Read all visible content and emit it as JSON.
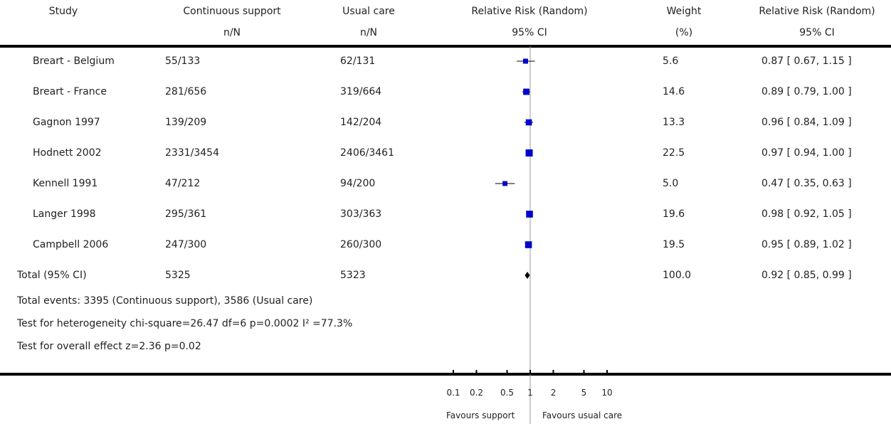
{
  "headers": {
    "study": "Study",
    "group1": "Continuous support",
    "group1_sub": "n/N",
    "group2": "Usual care",
    "group2_sub": "n/N",
    "effect": "Relative Risk (Random)",
    "effect_sub": "95% CI",
    "weight": "Weight",
    "weight_sub": "(%)",
    "ci": "Relative Risk (Random)",
    "ci_sub": "95% CI"
  },
  "total": {
    "label": "Total (95% CI)",
    "group1": "5325",
    "group2": "5323",
    "weight": "100.0",
    "ci_text": "0.92 [ 0.85, 0.99 ]"
  },
  "footnotes": {
    "events": "Total events: 3395 (Continuous support), 3586 (Usual care)",
    "heterogeneity": "Test for heterogeneity chi-square=26.47 df=6 p=0.0002 I² =77.3%",
    "overall": "Test for overall effect z=2.36    p=0.02"
  },
  "axis": {
    "ticks": [
      "0.1",
      "0.2",
      "0.5",
      "1",
      "2",
      "5",
      "10"
    ],
    "favours_left": "Favours support",
    "favours_right": "Favours usual care"
  },
  "colors": {
    "marker": "#0000cc",
    "diamond": "#000000",
    "rule": "#000000"
  },
  "chart_data": {
    "type": "forest",
    "scale": "log",
    "xlim": [
      0.1,
      10
    ],
    "null_value": 1,
    "studies": [
      {
        "name": "Breart - Belgium",
        "group1": "55/133",
        "group2": "62/131",
        "weight": "5.6",
        "rr": 0.87,
        "lo": 0.67,
        "hi": 1.15,
        "ci_text": "0.87 [ 0.67, 1.15 ]"
      },
      {
        "name": "Breart - France",
        "group1": "281/656",
        "group2": "319/664",
        "weight": "14.6",
        "rr": 0.89,
        "lo": 0.79,
        "hi": 1.0,
        "ci_text": "0.89 [ 0.79, 1.00 ]"
      },
      {
        "name": "Gagnon 1997",
        "group1": "139/209",
        "group2": "142/204",
        "weight": "13.3",
        "rr": 0.96,
        "lo": 0.84,
        "hi": 1.09,
        "ci_text": "0.96 [ 0.84, 1.09 ]"
      },
      {
        "name": "Hodnett 2002",
        "group1": "2331/3454",
        "group2": "2406/3461",
        "weight": "22.5",
        "rr": 0.97,
        "lo": 0.94,
        "hi": 1.0,
        "ci_text": "0.97 [ 0.94, 1.00 ]"
      },
      {
        "name": "Kennell 1991",
        "group1": "47/212",
        "group2": "94/200",
        "weight": "5.0",
        "rr": 0.47,
        "lo": 0.35,
        "hi": 0.63,
        "ci_text": "0.47 [ 0.35, 0.63 ]"
      },
      {
        "name": "Langer 1998",
        "group1": "295/361",
        "group2": "303/363",
        "weight": "19.6",
        "rr": 0.98,
        "lo": 0.92,
        "hi": 1.05,
        "ci_text": "0.98 [ 0.92, 1.05 ]"
      },
      {
        "name": "Campbell 2006",
        "group1": "247/300",
        "group2": "260/300",
        "weight": "19.5",
        "rr": 0.95,
        "lo": 0.89,
        "hi": 1.02,
        "ci_text": "0.95 [ 0.89, 1.02 ]"
      }
    ],
    "pooled": {
      "rr": 0.92,
      "lo": 0.85,
      "hi": 0.99
    }
  }
}
